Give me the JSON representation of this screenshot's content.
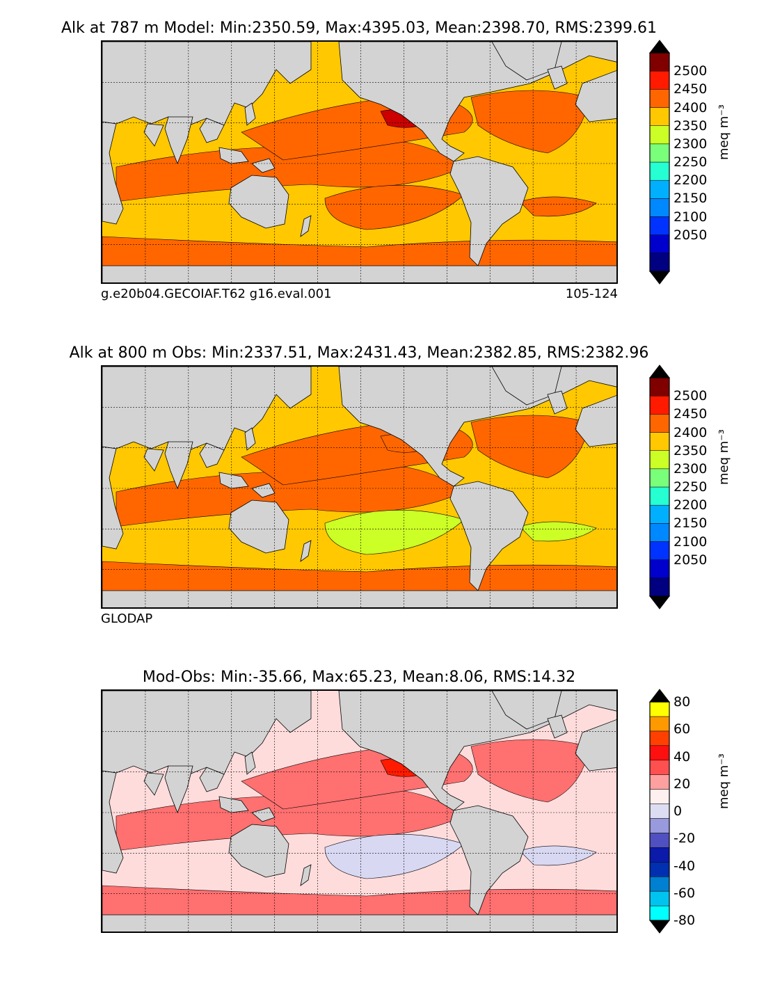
{
  "panels": [
    {
      "title": "Alk at 787 m Model: Min:2350.59, Max:4395.03, Mean:2398.70, RMS:2399.61",
      "caption_left": "g.e20b04.GECOIAF.T62 g16.eval.001",
      "caption_right": "105-124",
      "unit": "meq m⁻³",
      "colorbar": {
        "ticks": [
          "2500",
          "2450",
          "2400",
          "2350",
          "2300",
          "2250",
          "2200",
          "2150",
          "2100",
          "2050"
        ],
        "colors": [
          "#000080",
          "#0000cd",
          "#0033ff",
          "#0088ff",
          "#00b0ff",
          "#26ffd2",
          "#7aff7a",
          "#ccff26",
          "#ffc800",
          "#ff6600",
          "#ff1a00",
          "#800000"
        ],
        "under_color": "#000000",
        "over_color": "#000000"
      },
      "fields": {
        "ocean_base": "#ffc800",
        "band_primary": "#ff6600",
        "band_secondary": "#ff6600",
        "accent_patch": "#cc0000"
      }
    },
    {
      "title": "Alk at 800 m Obs: Min:2337.51, Max:2431.43, Mean:2382.85, RMS:2382.96",
      "caption_left": "GLODAP",
      "caption_right": "",
      "unit": "meq m⁻³",
      "colorbar": {
        "ticks": [
          "2500",
          "2450",
          "2400",
          "2350",
          "2300",
          "2250",
          "2200",
          "2150",
          "2100",
          "2050"
        ],
        "colors": [
          "#000080",
          "#0000cd",
          "#0033ff",
          "#0088ff",
          "#00b0ff",
          "#26ffd2",
          "#7aff7a",
          "#ccff26",
          "#ffc800",
          "#ff6600",
          "#ff1a00",
          "#800000"
        ],
        "under_color": "#000000",
        "over_color": "#000000"
      },
      "fields": {
        "ocean_base": "#ffc800",
        "band_primary": "#ff6600",
        "band_secondary": "#ccff26",
        "accent_patch": "#ff6600"
      }
    },
    {
      "title": "Mod-Obs: Min:-35.66, Max:65.23, Mean:8.06, RMS:14.32",
      "caption_left": "",
      "caption_right": "",
      "unit": "meq m⁻³",
      "colorbar": {
        "ticks": [
          "80",
          "60",
          "40",
          "20",
          "0",
          "-20",
          "-40",
          "-60",
          "-80"
        ],
        "colors": [
          "#00ffff",
          "#00c4f0",
          "#0080d0",
          "#0030b0",
          "#0c1aaa",
          "#5050c0",
          "#9999dd",
          "#dcdcf2",
          "#fff0f0",
          "#ffa0a0",
          "#ff5050",
          "#ff1010",
          "#ff4000",
          "#ff9900",
          "#ffff00"
        ],
        "under_color": "#000000",
        "over_color": "#000000"
      },
      "fields": {
        "ocean_base": "#ffdcdc",
        "band_primary": "#ff7070",
        "band_secondary": "#d8d8f2",
        "accent_patch": "#ff1a00"
      }
    }
  ]
}
